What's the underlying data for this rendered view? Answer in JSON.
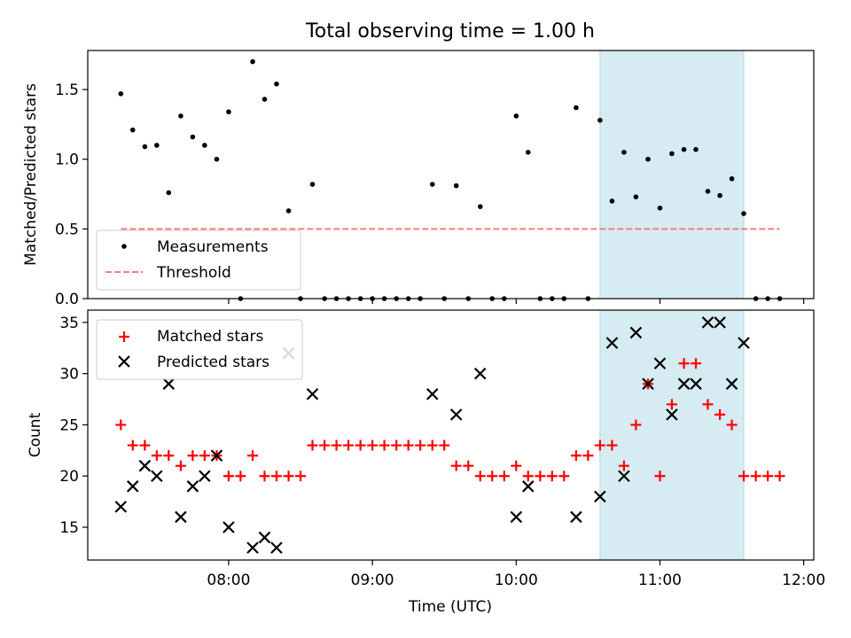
{
  "chart_data": [
    {
      "type": "scatter",
      "title": "Total observing time = 1.00 h",
      "ylabel": "Matched/Predicted stars",
      "xlabel": "",
      "xlim": [
        7.02,
        12.07
      ],
      "ylim": [
        0,
        1.78
      ],
      "yticks": [
        0.0,
        0.5,
        1.0,
        1.5
      ],
      "ytick_labels": [
        "0.0",
        "0.5",
        "1.0",
        "1.5"
      ],
      "highlight_span": [
        10.583,
        11.583
      ],
      "highlight_color": "#add8e6",
      "legend_position": "lower-left",
      "series": [
        {
          "name": "Measurements",
          "marker": "dot",
          "color": "#000000",
          "points": [
            [
              7.25,
              1.47
            ],
            [
              7.333,
              1.21
            ],
            [
              7.417,
              1.09
            ],
            [
              7.5,
              1.1
            ],
            [
              7.583,
              0.76
            ],
            [
              7.667,
              1.31
            ],
            [
              7.75,
              1.16
            ],
            [
              7.833,
              1.1
            ],
            [
              7.917,
              1.0
            ],
            [
              8.0,
              1.34
            ],
            [
              8.083,
              0.0
            ],
            [
              8.167,
              1.7
            ],
            [
              8.25,
              1.43
            ],
            [
              8.333,
              1.54
            ],
            [
              8.417,
              0.63
            ],
            [
              8.5,
              0.0
            ],
            [
              8.583,
              0.82
            ],
            [
              8.667,
              0.0
            ],
            [
              8.75,
              0.0
            ],
            [
              8.833,
              0.0
            ],
            [
              8.917,
              0.0
            ],
            [
              9.0,
              0.0
            ],
            [
              9.083,
              0.0
            ],
            [
              9.167,
              0.0
            ],
            [
              9.25,
              0.0
            ],
            [
              9.333,
              0.0
            ],
            [
              9.417,
              0.82
            ],
            [
              9.5,
              0.0
            ],
            [
              9.583,
              0.81
            ],
            [
              9.667,
              0.0
            ],
            [
              9.75,
              0.66
            ],
            [
              9.833,
              0.0
            ],
            [
              9.917,
              0.0
            ],
            [
              10.0,
              1.31
            ],
            [
              10.083,
              1.05
            ],
            [
              10.167,
              0.0
            ],
            [
              10.25,
              0.0
            ],
            [
              10.333,
              0.0
            ],
            [
              10.417,
              1.37
            ],
            [
              10.5,
              0.0
            ],
            [
              10.583,
              1.28
            ],
            [
              10.667,
              0.7
            ],
            [
              10.75,
              1.05
            ],
            [
              10.833,
              0.73
            ],
            [
              10.917,
              1.0
            ],
            [
              11.0,
              0.65
            ],
            [
              11.083,
              1.04
            ],
            [
              11.167,
              1.07
            ],
            [
              11.25,
              1.07
            ],
            [
              11.333,
              0.77
            ],
            [
              11.417,
              0.74
            ],
            [
              11.5,
              0.86
            ],
            [
              11.583,
              0.61
            ],
            [
              11.667,
              0.0
            ],
            [
              11.75,
              0.0
            ],
            [
              11.833,
              0.0
            ]
          ]
        },
        {
          "name": "Threshold",
          "line": "dashed",
          "color": "#f08080",
          "x": [
            7.25,
            11.833
          ],
          "y": [
            0.5,
            0.5
          ]
        }
      ]
    },
    {
      "type": "scatter",
      "title": "",
      "ylabel": "Count",
      "xlabel": "Time (UTC)",
      "xlim": [
        7.02,
        12.07
      ],
      "ylim": [
        11.8,
        36.2
      ],
      "yticks": [
        15,
        20,
        25,
        30,
        35
      ],
      "ytick_labels": [
        "15",
        "20",
        "25",
        "30",
        "35"
      ],
      "xticks": [
        8,
        9,
        10,
        11,
        12
      ],
      "xtick_labels": [
        "08:00",
        "09:00",
        "10:00",
        "11:00",
        "12:00"
      ],
      "highlight_span": [
        10.583,
        11.583
      ],
      "highlight_color": "#add8e6",
      "legend_position": "upper-left",
      "series": [
        {
          "name": "Matched stars",
          "marker": "plus",
          "color": "#ff0000",
          "points": [
            [
              7.25,
              25
            ],
            [
              7.333,
              23
            ],
            [
              7.417,
              23
            ],
            [
              7.5,
              22
            ],
            [
              7.583,
              22
            ],
            [
              7.667,
              21
            ],
            [
              7.75,
              22
            ],
            [
              7.833,
              22
            ],
            [
              7.917,
              22
            ],
            [
              8.0,
              20
            ],
            [
              8.083,
              20
            ],
            [
              8.167,
              22
            ],
            [
              8.25,
              20
            ],
            [
              8.333,
              20
            ],
            [
              8.417,
              20
            ],
            [
              8.5,
              20
            ],
            [
              8.583,
              23
            ],
            [
              8.667,
              23
            ],
            [
              8.75,
              23
            ],
            [
              8.833,
              23
            ],
            [
              8.917,
              23
            ],
            [
              9.0,
              23
            ],
            [
              9.083,
              23
            ],
            [
              9.167,
              23
            ],
            [
              9.25,
              23
            ],
            [
              9.333,
              23
            ],
            [
              9.417,
              23
            ],
            [
              9.5,
              23
            ],
            [
              9.583,
              21
            ],
            [
              9.667,
              21
            ],
            [
              9.75,
              20
            ],
            [
              9.833,
              20
            ],
            [
              9.917,
              20
            ],
            [
              10.0,
              21
            ],
            [
              10.083,
              20
            ],
            [
              10.167,
              20
            ],
            [
              10.25,
              20
            ],
            [
              10.333,
              20
            ],
            [
              10.417,
              22
            ],
            [
              10.5,
              22
            ],
            [
              10.583,
              23
            ],
            [
              10.667,
              23
            ],
            [
              10.75,
              21
            ],
            [
              10.833,
              25
            ],
            [
              10.917,
              29
            ],
            [
              11.0,
              20
            ],
            [
              11.083,
              27
            ],
            [
              11.167,
              31
            ],
            [
              11.25,
              31
            ],
            [
              11.333,
              27
            ],
            [
              11.417,
              26
            ],
            [
              11.5,
              25
            ],
            [
              11.583,
              20
            ],
            [
              11.667,
              20
            ],
            [
              11.75,
              20
            ],
            [
              11.833,
              20
            ]
          ]
        },
        {
          "name": "Predicted stars",
          "marker": "cross",
          "color": "#000000",
          "points": [
            [
              7.25,
              17
            ],
            [
              7.333,
              19
            ],
            [
              7.417,
              21
            ],
            [
              7.5,
              20
            ],
            [
              7.583,
              29
            ],
            [
              7.667,
              16
            ],
            [
              7.75,
              19
            ],
            [
              7.833,
              20
            ],
            [
              7.917,
              22
            ],
            [
              8.0,
              15
            ],
            [
              8.167,
              13
            ],
            [
              8.25,
              14
            ],
            [
              8.333,
              13
            ],
            [
              8.417,
              32
            ],
            [
              8.583,
              28
            ],
            [
              9.417,
              28
            ],
            [
              9.583,
              26
            ],
            [
              9.75,
              30
            ],
            [
              10.0,
              16
            ],
            [
              10.083,
              19
            ],
            [
              10.417,
              16
            ],
            [
              10.583,
              18
            ],
            [
              10.667,
              33
            ],
            [
              10.75,
              20
            ],
            [
              10.833,
              34
            ],
            [
              10.917,
              29
            ],
            [
              11.0,
              31
            ],
            [
              11.083,
              26
            ],
            [
              11.167,
              29
            ],
            [
              11.25,
              29
            ],
            [
              11.333,
              35
            ],
            [
              11.417,
              35
            ],
            [
              11.5,
              29
            ],
            [
              11.583,
              33
            ]
          ]
        }
      ]
    }
  ]
}
